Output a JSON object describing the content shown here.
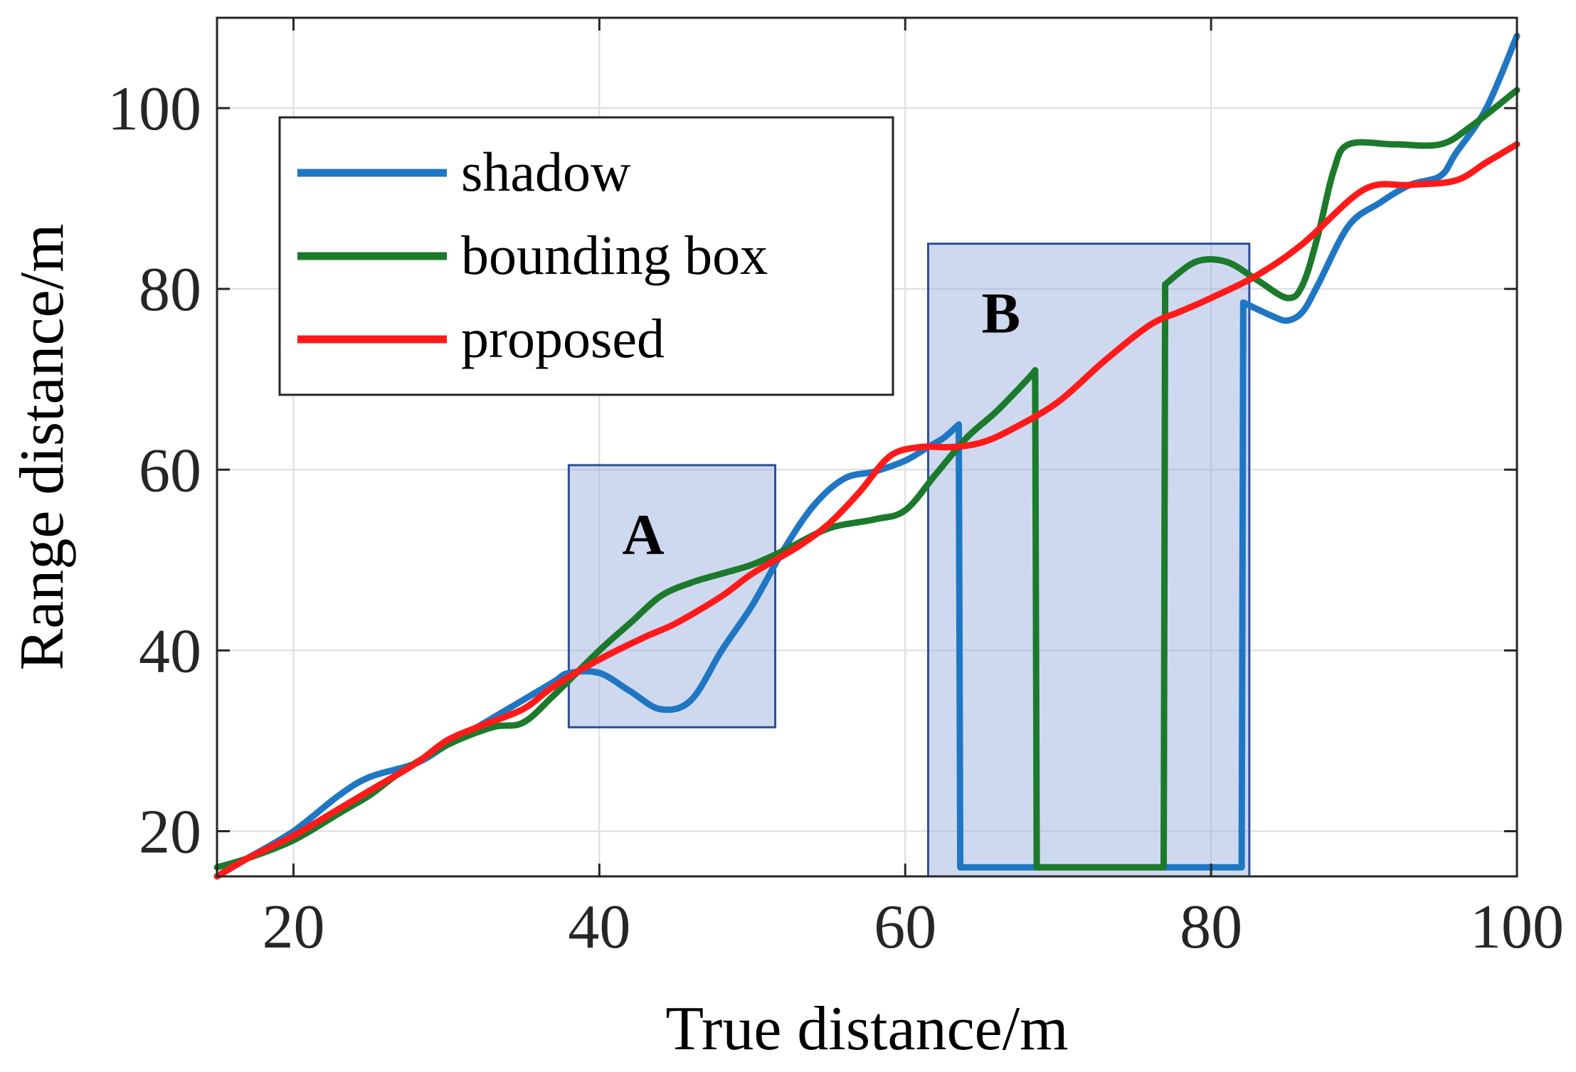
{
  "chart_data": {
    "type": "line",
    "xlabel": "True distance/m",
    "ylabel": "Range distance/m",
    "xlim": [
      15,
      100
    ],
    "ylim": [
      15,
      110
    ],
    "xticks": [
      20,
      40,
      60,
      80,
      100
    ],
    "yticks": [
      20,
      40,
      60,
      80,
      100
    ],
    "grid": true,
    "legend_position": "top-left",
    "series": [
      {
        "name": "shadow",
        "color": "#1f77c4",
        "points": [
          [
            15,
            15
          ],
          [
            17,
            17
          ],
          [
            20,
            20
          ],
          [
            23,
            24
          ],
          [
            25,
            26
          ],
          [
            28,
            27.5
          ],
          [
            30,
            29.5
          ],
          [
            32,
            31.5
          ],
          [
            35,
            34.5
          ],
          [
            37,
            36.5
          ],
          [
            38,
            37.5
          ],
          [
            40,
            37.5
          ],
          [
            42,
            35.5
          ],
          [
            44,
            33.5
          ],
          [
            46,
            34.5
          ],
          [
            48,
            40
          ],
          [
            50,
            45
          ],
          [
            52,
            51
          ],
          [
            54,
            56
          ],
          [
            56,
            59
          ],
          [
            58,
            59.8
          ],
          [
            60,
            61
          ],
          [
            61.5,
            62.5
          ],
          [
            62.5,
            63.5
          ],
          [
            63.5,
            65
          ],
          [
            63.6,
            16
          ],
          [
            82,
            16
          ],
          [
            82.1,
            78.5
          ],
          [
            84,
            77
          ],
          [
            85,
            76.5
          ],
          [
            86,
            77.5
          ],
          [
            87,
            80.5
          ],
          [
            89,
            87
          ],
          [
            91,
            89.5
          ],
          [
            93,
            91.5
          ],
          [
            95,
            92.5
          ],
          [
            96,
            95
          ],
          [
            98,
            100
          ],
          [
            100,
            108
          ]
        ]
      },
      {
        "name": "bounding box",
        "color": "#1b7a2b",
        "points": [
          [
            15,
            16
          ],
          [
            17,
            17
          ],
          [
            20,
            19
          ],
          [
            23,
            22
          ],
          [
            25,
            24
          ],
          [
            27,
            26.5
          ],
          [
            30,
            29.5
          ],
          [
            33,
            31.5
          ],
          [
            35,
            32
          ],
          [
            37,
            35
          ],
          [
            40,
            40
          ],
          [
            42,
            43
          ],
          [
            44,
            46
          ],
          [
            46,
            47.5
          ],
          [
            48,
            48.5
          ],
          [
            50,
            49.5
          ],
          [
            52,
            51
          ],
          [
            55,
            53.5
          ],
          [
            58,
            54.5
          ],
          [
            60,
            55.5
          ],
          [
            62,
            59.5
          ],
          [
            64,
            63.5
          ],
          [
            66,
            66.5
          ],
          [
            68,
            70
          ],
          [
            68.5,
            71
          ],
          [
            68.6,
            16
          ],
          [
            76.9,
            16
          ],
          [
            77,
            80.5
          ],
          [
            79,
            83
          ],
          [
            81,
            83
          ],
          [
            83,
            81
          ],
          [
            85,
            79
          ],
          [
            86,
            80.5
          ],
          [
            87,
            86
          ],
          [
            88,
            93
          ],
          [
            89,
            96
          ],
          [
            92,
            96
          ],
          [
            95,
            96
          ],
          [
            97,
            98
          ],
          [
            100,
            102
          ]
        ]
      },
      {
        "name": "proposed",
        "color": "#ff1a1a",
        "points": [
          [
            15,
            15
          ],
          [
            17,
            17
          ],
          [
            20,
            19.5
          ],
          [
            23,
            22.5
          ],
          [
            25,
            24.5
          ],
          [
            28,
            27.5
          ],
          [
            30,
            30
          ],
          [
            32,
            31.5
          ],
          [
            35,
            33.5
          ],
          [
            37,
            36
          ],
          [
            40,
            39
          ],
          [
            43,
            41.5
          ],
          [
            45,
            43
          ],
          [
            48,
            46
          ],
          [
            50,
            48.5
          ],
          [
            53,
            51.5
          ],
          [
            55,
            54
          ],
          [
            57,
            57.5
          ],
          [
            59,
            61.5
          ],
          [
            61,
            62.5
          ],
          [
            63,
            62.5
          ],
          [
            65,
            63
          ],
          [
            67,
            64.5
          ],
          [
            70,
            67.5
          ],
          [
            73,
            72
          ],
          [
            76,
            76
          ],
          [
            78,
            77.5
          ],
          [
            80,
            79
          ],
          [
            83,
            81.5
          ],
          [
            86,
            85
          ],
          [
            90,
            91
          ],
          [
            93,
            91.5
          ],
          [
            96,
            92
          ],
          [
            98,
            94
          ],
          [
            100,
            96
          ]
        ]
      }
    ],
    "regions": [
      {
        "label": "A",
        "x": [
          38,
          51.5
        ],
        "y": [
          31.5,
          60.5
        ]
      },
      {
        "label": "B",
        "x": [
          61.5,
          82.5
        ],
        "y": [
          15,
          85
        ]
      }
    ]
  }
}
